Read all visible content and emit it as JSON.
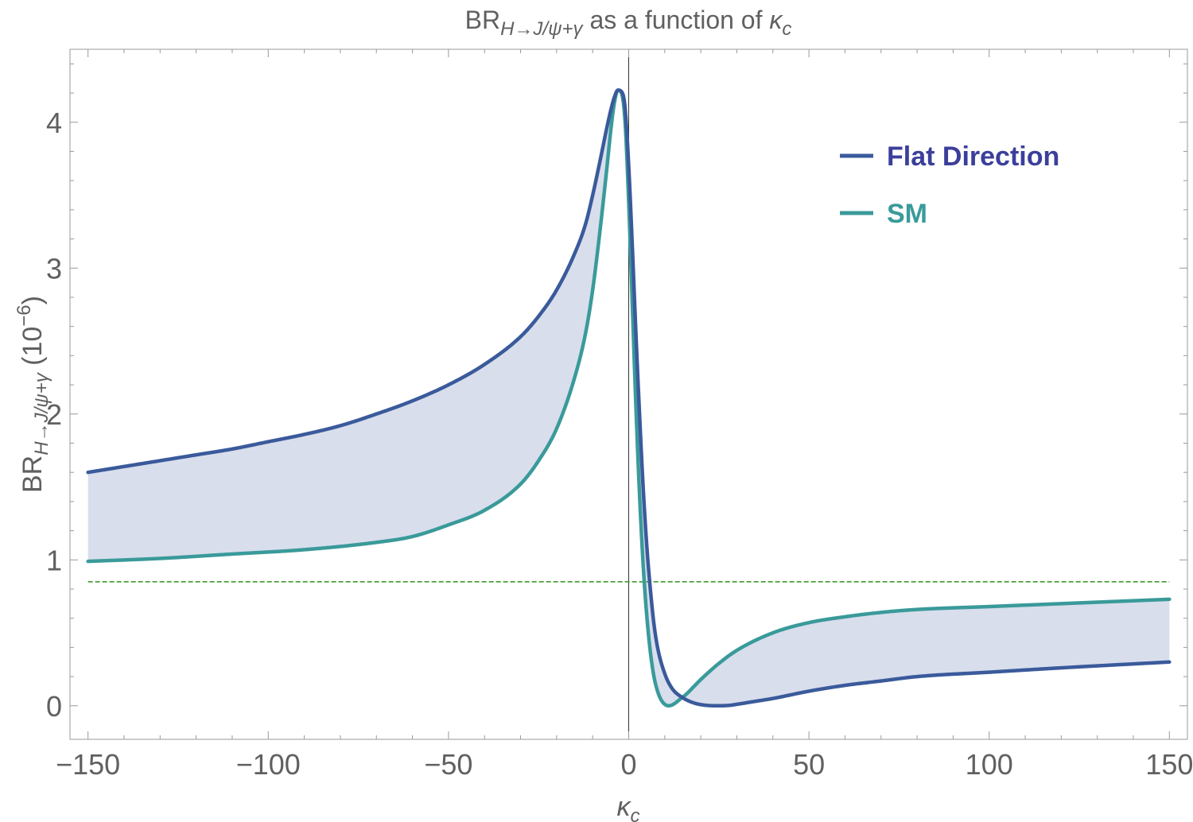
{
  "chart_data": {
    "type": "line",
    "title": {
      "prefix": "BR",
      "subscript": "H→J/ψ+γ",
      "middle": " as a function of ",
      "symbol": "κ",
      "symbol_subscript": "c"
    },
    "xlabel": {
      "symbol": "κ",
      "subscript": "c"
    },
    "ylabel": {
      "prefix": "BR",
      "subscript": "H→J/ψ+γ",
      "unit_base": " (10",
      "unit_exp": "−6",
      "unit_close": ")"
    },
    "xlim": [
      -155,
      155
    ],
    "ylim": [
      -0.23,
      4.5
    ],
    "xticks": [
      -150,
      -100,
      -50,
      0,
      50,
      100,
      150
    ],
    "xtick_labels": [
      "−150",
      "−100",
      "−50",
      "0",
      "50",
      "100",
      "150"
    ],
    "yticks": [
      0,
      1,
      2,
      3,
      4
    ],
    "ytick_labels": [
      "0",
      "1",
      "2",
      "3",
      "4"
    ],
    "grid": false,
    "frame": true,
    "legend_position": "top-right",
    "band_fill": "#d8deec",
    "reference_line": {
      "y": 0.85,
      "color": "#3f9a2e",
      "style": "dashed"
    },
    "series": [
      {
        "name": "Flat Direction",
        "color": "#3a5a9b",
        "label_color": "#3b3f9b",
        "x": [
          -150,
          -140,
          -130,
          -120,
          -110,
          -100,
          -90,
          -80,
          -70,
          -60,
          -50,
          -40,
          -30,
          -25,
          -20,
          -15,
          -12,
          -10,
          -8,
          -6,
          -5,
          -4,
          -3,
          -2,
          -1,
          0,
          1,
          2,
          3,
          4,
          5,
          6,
          7,
          8,
          10,
          12,
          15,
          18,
          20,
          22,
          25,
          28,
          30,
          35,
          40,
          50,
          60,
          70,
          80,
          100,
          120,
          150
        ],
        "y": [
          1.6,
          1.64,
          1.68,
          1.72,
          1.76,
          1.81,
          1.86,
          1.92,
          2.0,
          2.09,
          2.2,
          2.34,
          2.53,
          2.67,
          2.85,
          3.1,
          3.3,
          3.5,
          3.73,
          3.97,
          4.08,
          4.17,
          4.22,
          4.21,
          4.1,
          3.7,
          3.15,
          2.55,
          2.0,
          1.5,
          1.1,
          0.8,
          0.56,
          0.4,
          0.22,
          0.12,
          0.055,
          0.02,
          0.008,
          0.002,
          0.0,
          0.003,
          0.01,
          0.03,
          0.05,
          0.1,
          0.14,
          0.17,
          0.2,
          0.23,
          0.26,
          0.3
        ]
      },
      {
        "name": "SM",
        "color": "#3a9a9a",
        "label_color": "#3a9a9a",
        "x": [
          -150,
          -130,
          -110,
          -90,
          -70,
          -60,
          -50,
          -40,
          -30,
          -25,
          -20,
          -15,
          -12,
          -10,
          -8,
          -6,
          -5,
          -4,
          -3,
          -2,
          -1,
          0,
          1,
          2,
          3,
          4,
          5,
          6,
          7,
          8,
          9,
          10,
          11,
          12,
          13,
          14,
          16,
          18,
          20,
          25,
          30,
          40,
          50,
          60,
          70,
          80,
          100,
          120,
          150
        ],
        "y": [
          0.99,
          1.01,
          1.04,
          1.07,
          1.12,
          1.16,
          1.24,
          1.34,
          1.52,
          1.68,
          1.9,
          2.25,
          2.55,
          2.85,
          3.25,
          3.7,
          3.94,
          4.13,
          4.22,
          4.2,
          4.0,
          3.45,
          2.75,
          2.05,
          1.45,
          0.97,
          0.62,
          0.37,
          0.2,
          0.1,
          0.04,
          0.01,
          0.0,
          0.005,
          0.02,
          0.04,
          0.08,
          0.13,
          0.18,
          0.29,
          0.38,
          0.5,
          0.57,
          0.61,
          0.64,
          0.66,
          0.68,
          0.7,
          0.73
        ]
      }
    ]
  }
}
